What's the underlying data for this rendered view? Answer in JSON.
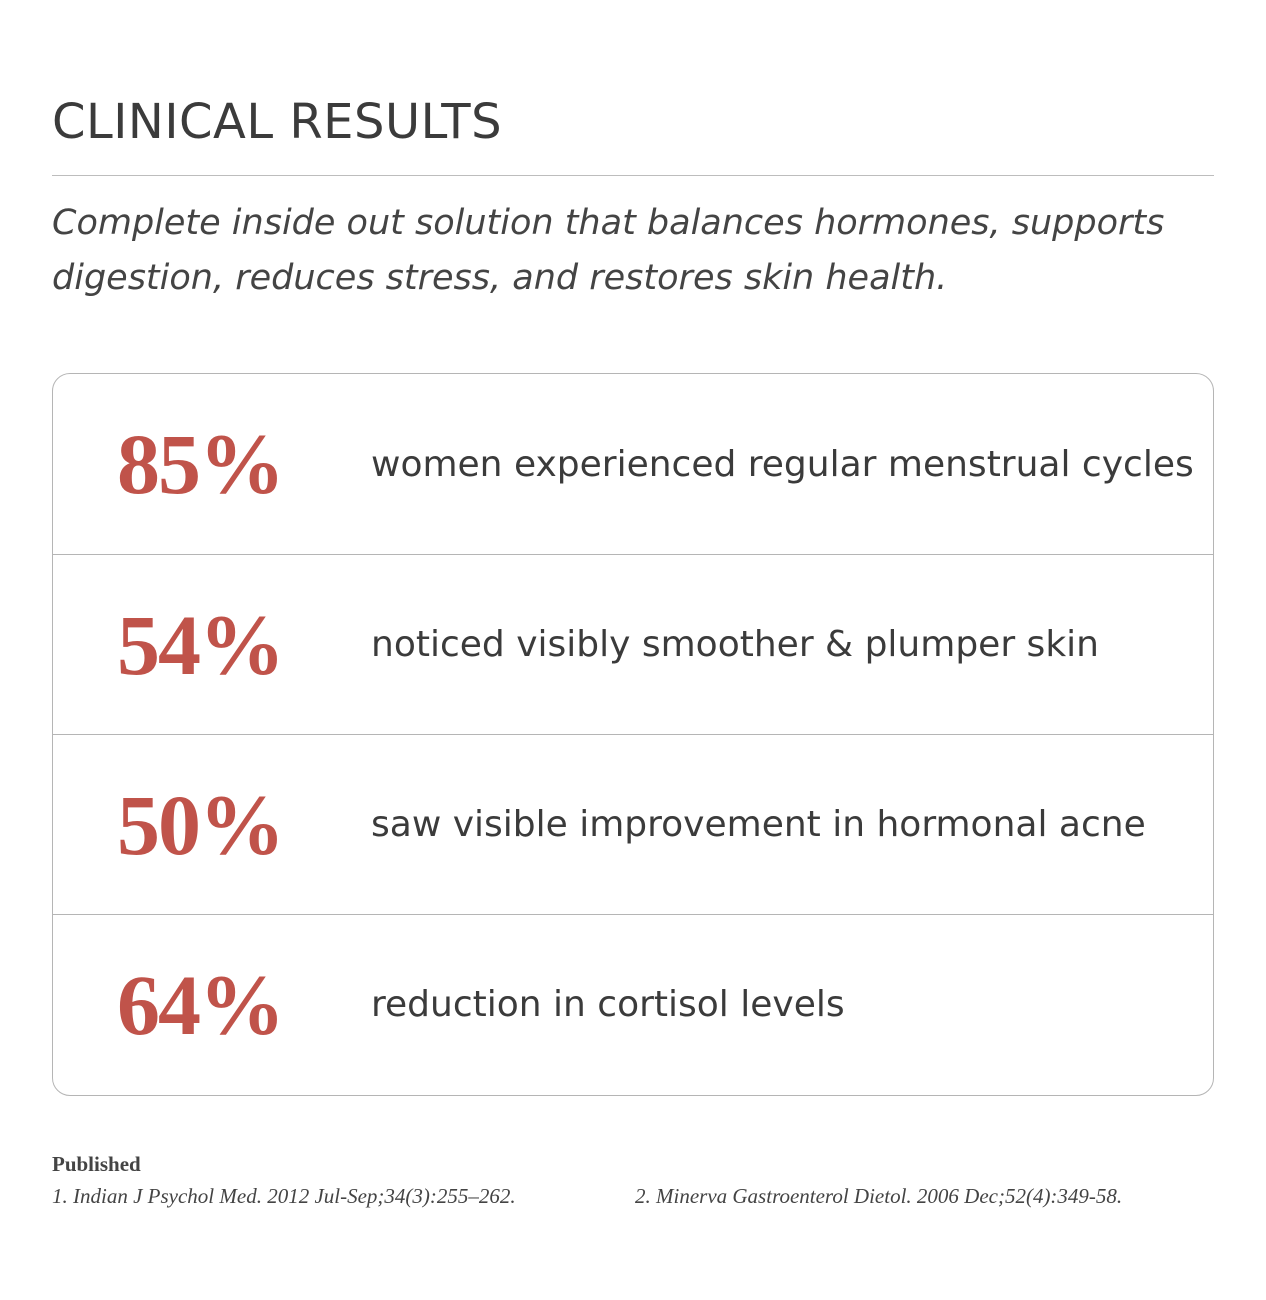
{
  "header": {
    "title": "CLINICAL RESULTS",
    "subtitle": "Complete inside out solution that balances hormones, supports digestion, reduces stress, and restores skin health."
  },
  "results": [
    {
      "stat": "85%",
      "text": "women experienced regular menstrual cycles"
    },
    {
      "stat": "54%",
      "text": "noticed visibly smoother & plumper skin"
    },
    {
      "stat": "50%",
      "text": "saw visible improvement in hormonal acne"
    },
    {
      "stat": "64%",
      "text": "reduction in cortisol levels"
    }
  ],
  "references": {
    "label": "Published",
    "items": [
      "1. Indian J Psychol Med. 2012 Jul-Sep;34(3):255–262.",
      "2. Minerva Gastroenterol Dietol. 2006 Dec;52(4):349-58."
    ]
  }
}
